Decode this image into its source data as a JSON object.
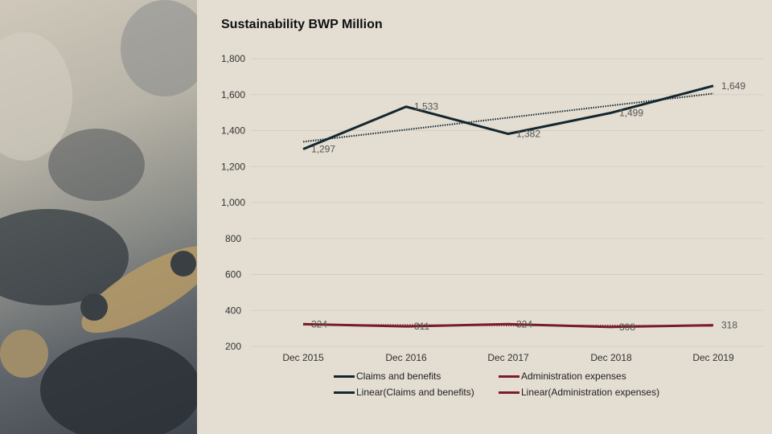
{
  "chart_data": {
    "type": "line",
    "title": "Sustainability BWP Million",
    "categories": [
      "Dec 2015",
      "Dec 2016",
      "Dec 2017",
      "Dec 2018",
      "Dec 2019"
    ],
    "ylim": [
      200,
      1800
    ],
    "yticks": [
      1800,
      1600,
      1400,
      1200,
      1000,
      800,
      600,
      400,
      200
    ],
    "ytick_labels": [
      "1,800",
      "1,600",
      "1,400",
      "1,200",
      "1,000",
      "800",
      "600",
      "400",
      "200"
    ],
    "series": [
      {
        "name": "Claims and benefits",
        "values": [
          1297,
          1533,
          1382,
          1499,
          1649
        ],
        "labels": [
          "1,297",
          "1,533",
          "1,382",
          "1,499",
          "1,649"
        ],
        "color": "#14262e"
      },
      {
        "name": "Administration expenses",
        "values": [
          324,
          311,
          324,
          308,
          318
        ],
        "labels": [
          "324",
          "311",
          "324",
          "308",
          "318"
        ],
        "color": "#7a1d2b"
      }
    ],
    "trendlines": [
      {
        "name": "Linear(Claims and benefits)",
        "of": 0,
        "color": "#14262e"
      },
      {
        "name": "Linear(Administration expenses)",
        "of": 1,
        "color": "#7a1d2b"
      }
    ],
    "legend_position": "bottom"
  }
}
